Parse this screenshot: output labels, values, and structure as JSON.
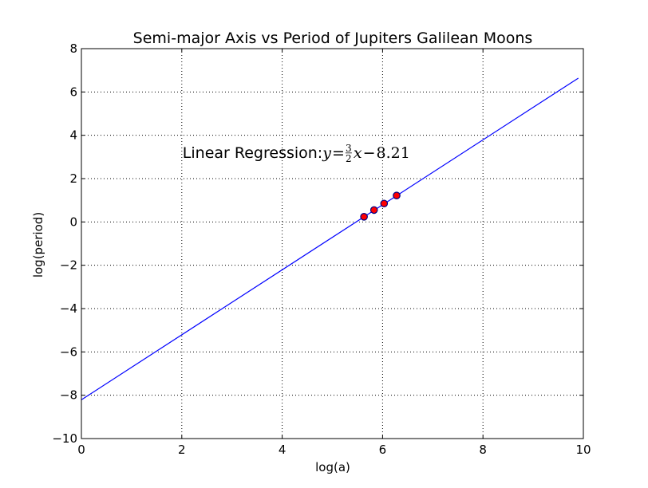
{
  "chart_data": {
    "type": "line",
    "title": "Semi-major Axis vs Period of Jupiters Galilean Moons",
    "xlabel": "log(a)",
    "ylabel": "log(period)",
    "xlim": [
      0,
      10
    ],
    "ylim": [
      -10,
      8
    ],
    "xticks": [
      0,
      2,
      4,
      6,
      8,
      10
    ],
    "yticks": [
      -10,
      -8,
      -6,
      -4,
      -2,
      0,
      2,
      4,
      6,
      8
    ],
    "grid": true,
    "series": [
      {
        "kind": "line",
        "color": "#0000ff",
        "x": [
          0,
          9.9
        ],
        "y": [
          -8.21,
          6.64
        ]
      },
      {
        "kind": "scatter",
        "color": "#ff0000",
        "edge_color": "#000080",
        "x": [
          5.63,
          5.83,
          6.03,
          6.28
        ],
        "y": [
          0.24,
          0.55,
          0.85,
          1.22
        ]
      }
    ],
    "annotation": {
      "prefix": "Linear Regression: ",
      "y_var": "y",
      "eq": "=",
      "frac_num": "3",
      "frac_den": "2",
      "x_var": "x",
      "minus": "−",
      "intercept": "8.21",
      "x": 2.0,
      "y": 3.0
    }
  }
}
